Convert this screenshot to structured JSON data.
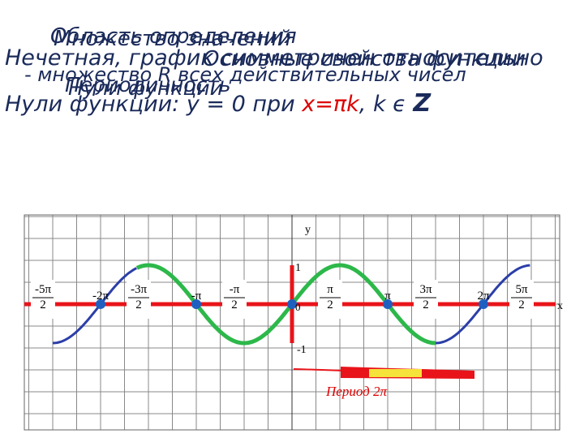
{
  "header": {
    "layers": [
      "Область определения",
      "Множество значений",
      "Основные свойства функции"
    ],
    "odd": "Нечетная, график симметричен относительно",
    "domain_text": "- множество R всех действительных чисел",
    "period_layers": [
      "Периодичность",
      "Нули функции"
    ],
    "zeros": {
      "lead": "Нули функции: y = 0 при ",
      "red": "x=πk",
      "mid": ", k ϵ ",
      "set": "Z"
    }
  },
  "graph": {
    "y_label": "y",
    "x_label": "x",
    "one": "1",
    "minus_one": "-1",
    "origin": "0",
    "ticks": [
      {
        "num": "-5π",
        "den": "2"
      },
      {
        "num": "-2π"
      },
      {
        "num": "-3π",
        "den": "2"
      },
      {
        "num": "-π"
      },
      {
        "num": "-π",
        "den": "2"
      },
      {
        "num": "π",
        "den": "2"
      },
      {
        "num": "π"
      },
      {
        "num": "3π",
        "den": "2"
      },
      {
        "num": "2π"
      },
      {
        "num": "5π",
        "den": "2"
      }
    ],
    "period": "Период  2π"
  }
}
